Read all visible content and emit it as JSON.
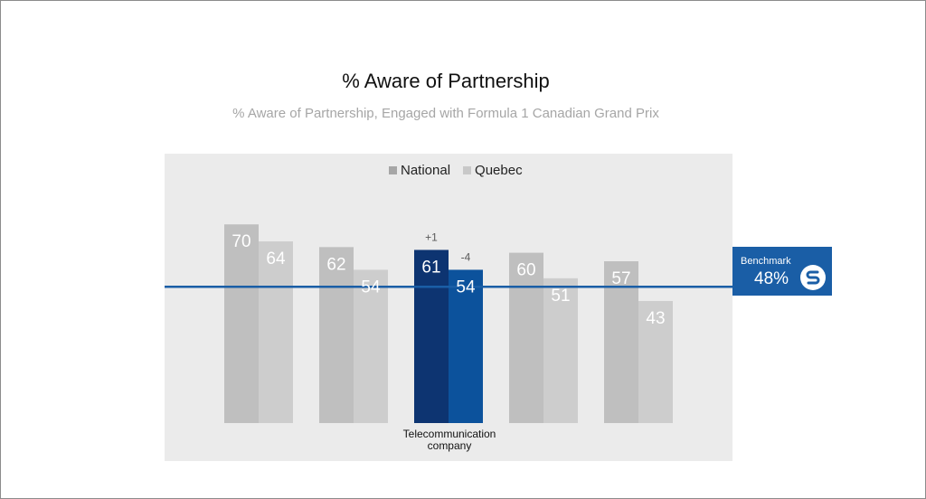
{
  "chart_data": {
    "type": "bar",
    "title": "% Aware of Partnership",
    "subtitle": "% Aware of Partnership, Engaged with Formula 1 Canadian Grand Prix",
    "categories": [
      "",
      "",
      "Telecommunication company",
      "",
      ""
    ],
    "series": [
      {
        "name": "National",
        "values": [
          70,
          62,
          61,
          60,
          57
        ]
      },
      {
        "name": "Quebec",
        "values": [
          64,
          54,
          54,
          51,
          43
        ]
      }
    ],
    "highlight_category_index": 2,
    "highlight_annotations": {
      "National": "+1",
      "Quebec": "-4"
    },
    "benchmark": {
      "label": "Benchmark",
      "value": 48,
      "value_label": "48%"
    },
    "ylim": [
      0,
      100
    ],
    "grid": false,
    "legend": "top-center",
    "colors": {
      "national": "#bfbfbf",
      "quebec": "#cdcdcd",
      "national_highlight": "#0d3471",
      "quebec_highlight": "#0c529c",
      "benchmark": "#1a5ea6",
      "panel": "#ebebeb",
      "legend_national": "#a6a6a6",
      "legend_quebec": "#c8c8c8"
    }
  }
}
